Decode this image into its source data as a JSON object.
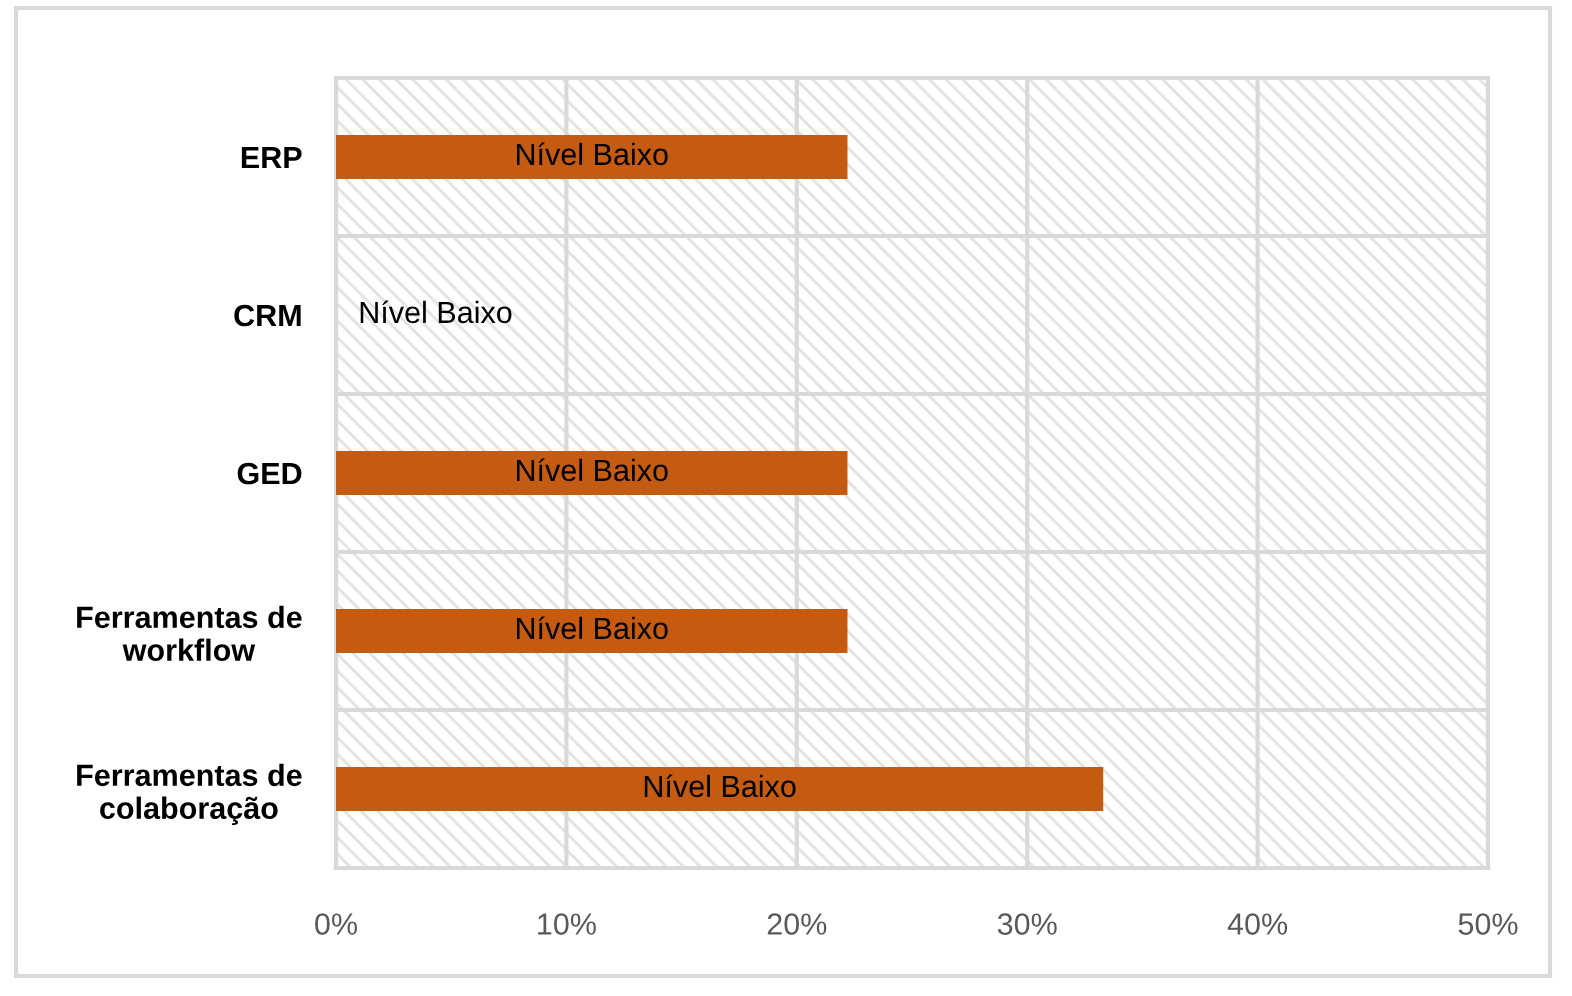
{
  "chart_data": {
    "type": "bar",
    "orientation": "horizontal",
    "categories": [
      "ERP",
      "CRM",
      "GED",
      "Ferramentas de\nworkflow",
      "Ferramentas de\ncolaboração"
    ],
    "values": [
      22.2,
      0,
      22.2,
      22.2,
      33.3
    ],
    "color": "#c55a11",
    "value_labels": [
      "Nível Baixo",
      "Nível Baixo",
      "Nível Baixo",
      "Nível Baixo",
      "Nível Baixo"
    ],
    "xlim": [
      0,
      50
    ],
    "xticks": [
      {
        "value": 0,
        "label": "0%"
      },
      {
        "value": 10,
        "label": "10%"
      },
      {
        "value": 20,
        "label": "20%"
      },
      {
        "value": 30,
        "label": "30%"
      },
      {
        "value": 40,
        "label": "40%"
      },
      {
        "value": 50,
        "label": "50%"
      }
    ],
    "grid": true
  }
}
